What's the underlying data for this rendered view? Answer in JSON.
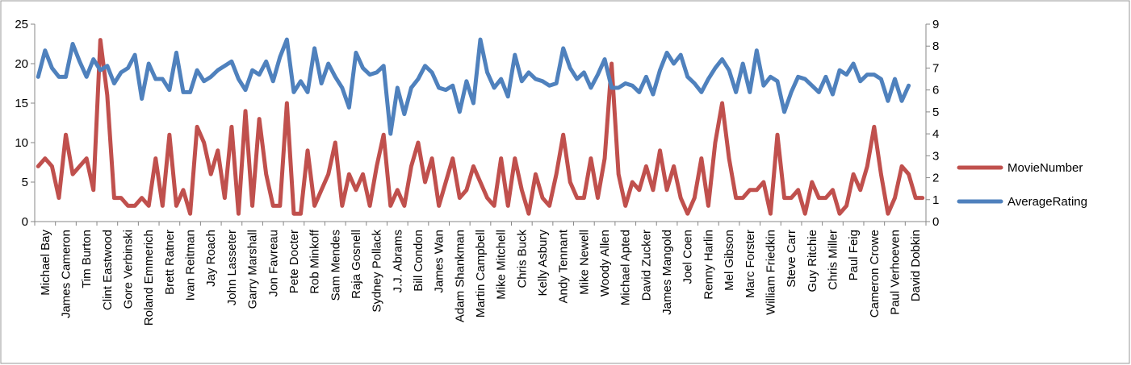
{
  "chart_data": {
    "type": "line",
    "title": "",
    "xlabel": "",
    "ylabel": "",
    "ylim": [
      0,
      25
    ],
    "yticks": [
      0,
      5,
      10,
      15,
      20,
      25
    ],
    "y2lim": [
      0,
      9
    ],
    "y2ticks": [
      0,
      1,
      2,
      3,
      4,
      5,
      6,
      7,
      8,
      9
    ],
    "grid": false,
    "legend_position": "right",
    "x_labels": [
      "Michael Bay",
      "James Cameron",
      "Tim Burton",
      "Clint Eastwood",
      "Gore Verbinski",
      "Roland Emmerich",
      "Brett Ratner",
      "Ivan Reitman",
      "Jay Roach",
      "John Lasseter",
      "Garry Marshall",
      "Jon Favreau",
      "Pete Docter",
      "Rob Minkoff",
      "Sam Mendes",
      "Raja Gosnell",
      "Sydney Pollack",
      "J.J. Abrams",
      "Bill Condon",
      "James Wan",
      "Adam Shankman",
      "Martin Campbell",
      "Mike Mitchell",
      "Chris Buck",
      "Kelly Asbury",
      "Andy Tennant",
      "Mike Newell",
      "Woody Allen",
      "Michael Apted",
      "David Zucker",
      "James Mangold",
      "Joel Coen",
      "Renny Harlin",
      "Mel Gibson",
      "Marc Forster",
      "William Friedkin",
      "Steve Carr",
      "Guy Ritchie",
      "Chris Miller",
      "Paul Feig",
      "Cameron Crowe",
      "Paul Verhoeven",
      "David Dobkin"
    ],
    "series": [
      {
        "name": "MovieNumber",
        "color": "#c0504d",
        "axis": "left",
        "values": [
          7,
          8,
          7,
          3,
          11,
          6,
          7,
          8,
          4,
          23,
          16,
          3,
          3,
          2,
          2,
          3,
          2,
          8,
          2,
          11,
          2,
          4,
          1,
          12,
          10,
          6,
          9,
          3,
          12,
          1,
          14,
          2,
          13,
          6,
          2,
          2,
          15,
          1,
          1,
          9,
          2,
          4,
          6,
          10,
          2,
          6,
          4,
          6,
          2,
          7,
          11,
          2,
          4,
          2,
          7,
          10,
          5,
          8,
          2,
          5,
          8,
          3,
          4,
          7,
          5,
          3,
          2,
          8,
          2,
          8,
          4,
          1,
          6,
          3,
          2,
          6,
          11,
          5,
          3,
          3,
          8,
          3,
          8,
          20,
          6,
          2,
          5,
          4,
          7,
          4,
          9,
          4,
          7,
          3,
          1,
          3,
          8,
          2,
          10,
          15,
          8,
          3,
          3,
          4,
          4,
          5,
          1,
          11,
          3,
          3,
          4,
          1,
          5,
          3,
          3,
          4,
          1,
          2,
          6,
          4,
          7,
          12,
          6,
          1,
          3,
          7,
          6,
          3,
          3
        ]
      },
      {
        "name": "AverageRating",
        "color": "#4f81bd",
        "axis": "right",
        "values": [
          6.6,
          7.8,
          7.0,
          6.6,
          6.6,
          8.1,
          7.3,
          6.6,
          7.4,
          6.9,
          7.1,
          6.3,
          6.8,
          7.0,
          7.6,
          5.6,
          7.2,
          6.5,
          6.5,
          6.0,
          7.7,
          5.9,
          5.9,
          6.9,
          6.4,
          6.6,
          6.9,
          7.1,
          7.3,
          6.5,
          6.0,
          6.9,
          6.7,
          7.3,
          6.4,
          7.5,
          8.3,
          5.9,
          6.4,
          5.9,
          7.9,
          6.3,
          7.2,
          6.6,
          6.1,
          5.2,
          7.7,
          7.0,
          6.7,
          6.8,
          7.1,
          4.0,
          6.1,
          4.9,
          6.1,
          6.5,
          7.1,
          6.8,
          6.1,
          6.0,
          6.2,
          5.0,
          6.4,
          5.4,
          8.3,
          6.8,
          6.1,
          6.5,
          5.7,
          7.6,
          6.4,
          6.8,
          6.5,
          6.4,
          6.2,
          6.3,
          7.9,
          7.0,
          6.5,
          6.8,
          6.1,
          6.7,
          7.4,
          6.1,
          6.1,
          6.3,
          6.2,
          5.9,
          6.6,
          5.8,
          6.9,
          7.7,
          7.2,
          7.6,
          6.6,
          6.3,
          5.9,
          6.5,
          7.0,
          7.4,
          6.9,
          5.9,
          7.2,
          5.9,
          7.8,
          6.2,
          6.6,
          6.4,
          5.0,
          5.9,
          6.6,
          6.5,
          6.2,
          5.9,
          6.6,
          5.8,
          6.9,
          6.7,
          7.2,
          6.4,
          6.7,
          6.7,
          6.5,
          5.5,
          6.5,
          5.5,
          6.2
        ]
      }
    ]
  }
}
